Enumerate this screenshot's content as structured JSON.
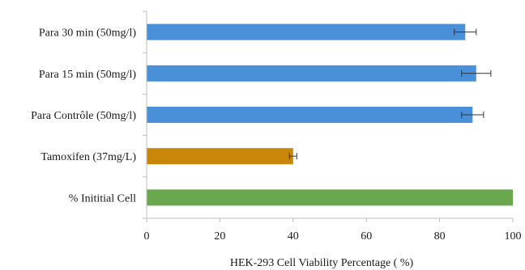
{
  "chart_data": {
    "type": "bar",
    "orientation": "horizontal",
    "categories": [
      "Para 30 min (50mg/l)",
      "Para 15 min (50mg/l)",
      "Para Contrôle (50mg/l)",
      "Tamoxifen (37mg/L)",
      "% Inititial Cell"
    ],
    "values": [
      87,
      90,
      89,
      40,
      100
    ],
    "errors": [
      3,
      4,
      3,
      1,
      null
    ],
    "bar_colors": [
      "#4a90d9",
      "#4a90d9",
      "#4a90d9",
      "#c8860a",
      "#6aa84f"
    ],
    "title": "",
    "xlabel": "HEK-293 Cell Viability Percentage  ( %)",
    "ylabel": "",
    "xlim": [
      0,
      100
    ],
    "xticks": [
      0,
      20,
      40,
      60,
      80,
      100
    ],
    "xtick_labels": [
      "0",
      "20",
      "40",
      "60",
      "80",
      "100"
    ],
    "grid": false,
    "legend": "none"
  }
}
